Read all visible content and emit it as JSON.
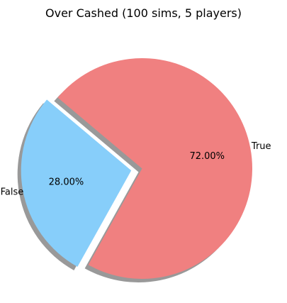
{
  "chart_data": {
    "type": "pie",
    "title": "Over Cashed (100 sims, 5 players)",
    "categories": [
      "False",
      "True"
    ],
    "values": [
      28.0,
      72.0
    ],
    "labels_pct": [
      "28.00%",
      "72.00%"
    ],
    "colors": [
      "#87CEFA",
      "#F08080"
    ],
    "shadow_color": "#999999",
    "explode": [
      0.1,
      0
    ],
    "start_angle_deg": 140,
    "shadow": true,
    "legend": "none"
  }
}
